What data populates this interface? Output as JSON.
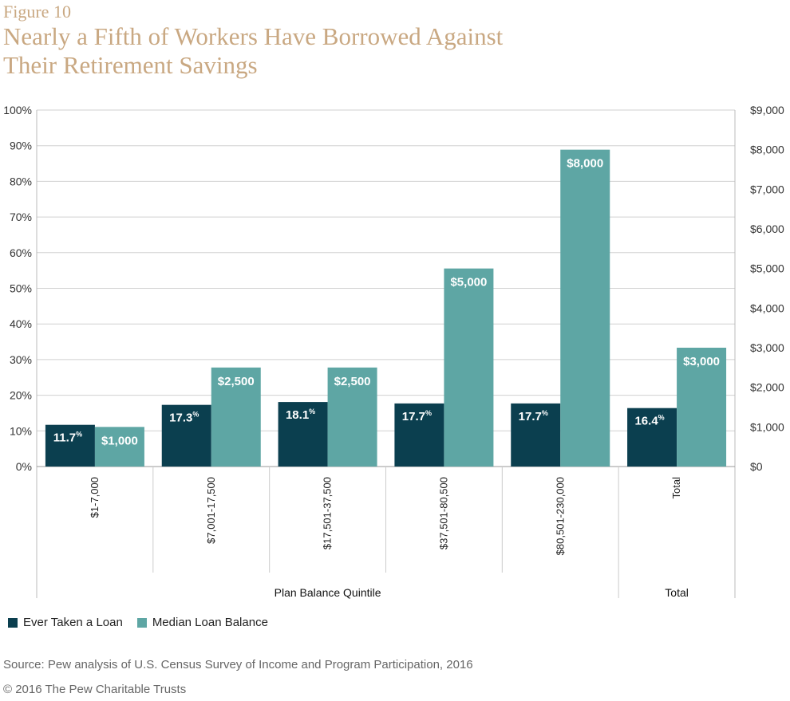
{
  "figure_label": "Figure 10",
  "title_lines": [
    "Nearly a Fifth of Workers Have Borrowed Against",
    "Their Retirement Savings"
  ],
  "source": "Source: Pew analysis of U.S. Census Survey of Income and Program Participation, 2016",
  "copyright": "© 2016 The Pew Charitable Trusts",
  "colors": {
    "loan": "#0b3f4f",
    "balance": "#5ea6a4",
    "title": "#c9a882",
    "grid": "#d0d0d0"
  },
  "chart_data": {
    "type": "bar",
    "categories": [
      "$1-7,000",
      "$7,001-17,500",
      "$17,501-37,500",
      "$37,501-80,500",
      "$80,501-230,000",
      "Total"
    ],
    "group_labels": [
      "Plan Balance Quintile",
      "Total"
    ],
    "series": [
      {
        "name": "Ever Taken a Loan",
        "axis": "left",
        "values": [
          11.7,
          17.3,
          18.1,
          17.7,
          17.7,
          16.4
        ],
        "labels": [
          "11.7",
          "17.3",
          "18.1",
          "17.7",
          "17.7",
          "16.4"
        ],
        "label_suffix": "%"
      },
      {
        "name": "Median Loan Balance",
        "axis": "right",
        "values": [
          1000,
          2500,
          2500,
          5000,
          8000,
          3000
        ],
        "labels": [
          "$1,000",
          "$2,500",
          "$2,500",
          "$5,000",
          "$8,000",
          "$3,000"
        ]
      }
    ],
    "y_left": {
      "ylim": [
        0,
        100
      ],
      "ticks": [
        "0%",
        "10%",
        "20%",
        "30%",
        "40%",
        "50%",
        "60%",
        "70%",
        "80%",
        "90%",
        "100%"
      ]
    },
    "y_right": {
      "ylim": [
        0,
        9000
      ],
      "ticks": [
        "$0",
        "$1,000",
        "$2,000",
        "$3,000",
        "$4,000",
        "$5,000",
        "$6,000",
        "$7,000",
        "$8,000",
        "$9,000"
      ]
    },
    "grid": true,
    "legend_position": "bottom-left"
  }
}
